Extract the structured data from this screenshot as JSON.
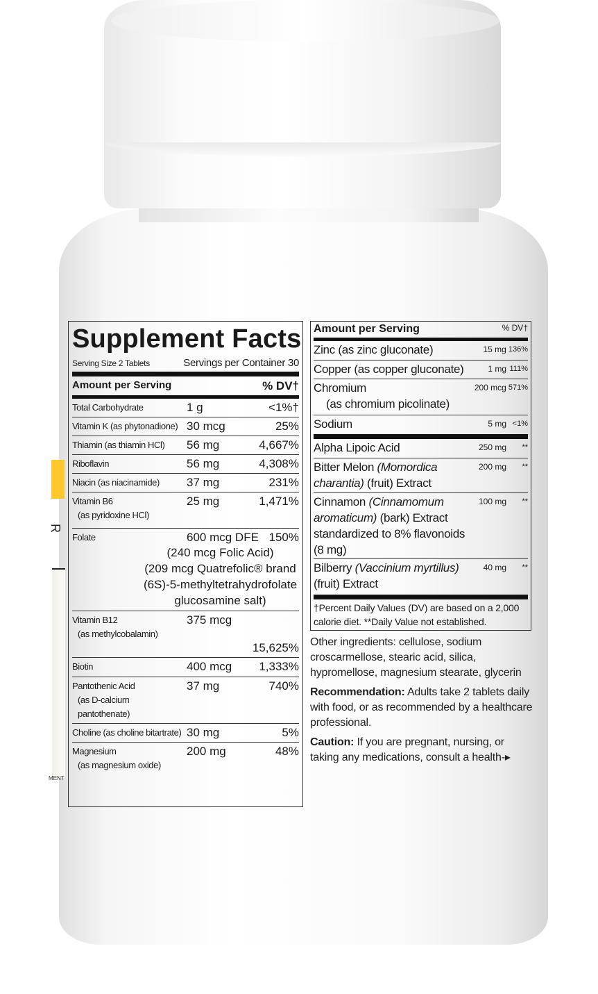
{
  "edge": {
    "mark": "R",
    "fragment": "MENT"
  },
  "colors": {
    "accent": "#fec72e"
  },
  "facts": {
    "title": "Supplement Facts",
    "serving_size": "Serving Size 2 Tablets",
    "servings_per_container": "Servings per Container 30",
    "amount_header": "Amount per Serving",
    "dv_header": "% DV†",
    "rows": [
      {
        "name": "Total Carbohydrate",
        "sub": "",
        "amount": "1 g",
        "dv": "<1%†"
      },
      {
        "name": "Vitamin K (as phytonadione)",
        "sub": "",
        "amount": "30 mcg",
        "dv": "25%"
      },
      {
        "name": "Thiamin (as thiamin HCl)",
        "sub": "",
        "amount": "56 mg",
        "dv": "4,667%"
      },
      {
        "name": "Riboflavin",
        "sub": "",
        "amount": "56 mg",
        "dv": "4,308%"
      },
      {
        "name": "Niacin (as niacinamide)",
        "sub": "",
        "amount": "37 mg",
        "dv": "231%"
      },
      {
        "name": "Vitamin B6",
        "sub": "(as pyridoxine HCl)",
        "amount": "25 mg",
        "dv": "1,471%"
      },
      {
        "name": "Folate",
        "sub": "",
        "amount": "600 mcg DFE",
        "dv": "150%",
        "extra": [
          "(240 mcg Folic Acid)",
          "(209 mcg Quatrefolic® brand",
          "(6S)-5-methyltetrahydrofolate",
          "glucosamine salt)"
        ]
      },
      {
        "name": "Vitamin B12",
        "sub": "(as methylcobalamin)",
        "amount": "375 mcg",
        "dv": "15,625%"
      },
      {
        "name": "Biotin",
        "sub": "",
        "amount": "400 mcg",
        "dv": "1,333%"
      },
      {
        "name": "Pantothenic Acid",
        "sub": "(as D-calcium pantothenate)",
        "amount": "37 mg",
        "dv": "740%"
      },
      {
        "name": "Choline (as choline bitartrate)",
        "sub": "",
        "amount": "30 mg",
        "dv": "5%"
      },
      {
        "name": "Magnesium",
        "sub": "(as magnesium oxide)",
        "amount": "200 mg",
        "dv": "48%"
      }
    ]
  },
  "facts2": {
    "amount_header": "Amount per Serving",
    "dv_header": "% DV†",
    "rows": [
      {
        "name": "Zinc (as zinc gluconate)",
        "italic": "",
        "rest": "",
        "sub": "",
        "amount": "15 mg",
        "dv": "136%"
      },
      {
        "name": "Copper (as copper gluconate)",
        "italic": "",
        "rest": "",
        "sub": "",
        "amount": "1 mg",
        "dv": "111%"
      },
      {
        "name": "Chromium",
        "italic": "",
        "rest": "",
        "sub": "(as chromium picolinate)",
        "amount": "200 mcg",
        "dv": "571%"
      },
      {
        "name": "Sodium",
        "italic": "",
        "rest": "",
        "sub": "",
        "amount": "5 mg",
        "dv": "<1%"
      },
      {
        "name": "Alpha Lipoic Acid",
        "italic": "",
        "rest": "",
        "sub": "",
        "amount": "250 mg",
        "dv": "**",
        "thick": true
      },
      {
        "name": "Bitter Melon ",
        "italic": "(Momordica charantia)",
        "rest": " (fruit) Extract",
        "sub": "",
        "amount": "200 mg",
        "dv": "**"
      },
      {
        "name": "Cinnamon ",
        "italic": "(Cinnamomum aromaticum)",
        "rest": " (bark) Extract standardized to 8% flavonoids (8 mg)",
        "sub": "",
        "amount": "100 mg",
        "dv": "**"
      },
      {
        "name": "Bilberry ",
        "italic": "(Vaccinium myrtillus)",
        "rest": " (fruit) Extract",
        "sub": "",
        "amount": "40 mg",
        "dv": "**"
      }
    ],
    "footnote": "†Percent Daily Values (DV) are based on a 2,000 calorie diet. **Daily Value not established."
  },
  "other_ingredients": "Other ingredients: cellulose, sodium croscarmellose, stearic acid, silica, hypromellose, magnesium stearate, glycerin",
  "recommendation": {
    "label": "Recommendation:",
    "text": " Adults take 2 tablets daily with food, or as recommended by a healthcare professional."
  },
  "caution": {
    "label": "Caution:",
    "text": " If you are pregnant, nursing, or taking any medications, consult a health-▸"
  }
}
